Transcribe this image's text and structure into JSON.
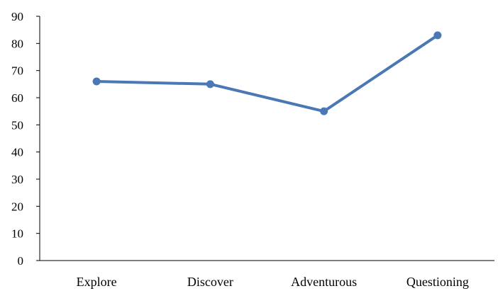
{
  "chart_data": {
    "type": "line",
    "categories": [
      "Explore",
      "Discover",
      "Adventurous",
      "Questioning"
    ],
    "series": [
      {
        "values": [
          66,
          65,
          55,
          83
        ]
      }
    ],
    "ylim": [
      0,
      90
    ],
    "yticks": [
      0,
      10,
      20,
      30,
      40,
      50,
      60,
      70,
      80,
      90
    ],
    "grid": false,
    "legend": "none",
    "colors": {
      "line": "#4a78b5",
      "axis": "#000000"
    }
  }
}
